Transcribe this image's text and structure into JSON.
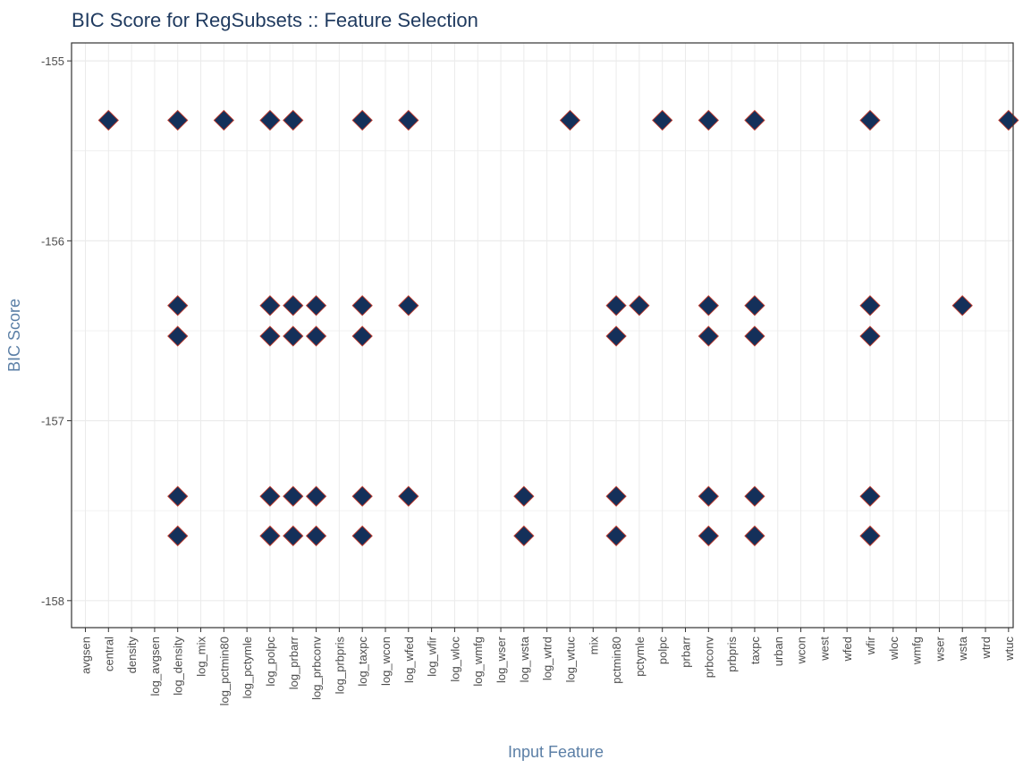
{
  "chart_data": {
    "type": "scatter",
    "title": "BIC Score for RegSubsets :: Feature Selection",
    "xlabel": "Input Feature",
    "ylabel": "BIC Score",
    "ylim": [
      -158.15,
      -154.9
    ],
    "yticks": [
      -155,
      -156,
      -157,
      -158
    ],
    "grid": true,
    "legend": "none",
    "marker": "diamond",
    "colors": {
      "fill": "#14305a",
      "stroke": "#c0392b",
      "title": "#1f3a5f",
      "axis_title": "#5b7fa6",
      "grid": "#ebebeb",
      "frame": "#333333"
    },
    "categories": [
      "avgsen",
      "central",
      "density",
      "log_avgsen",
      "log_density",
      "log_mix",
      "log_pctmin80",
      "log_pctymle",
      "log_polpc",
      "log_prbarr",
      "log_prbconv",
      "log_prbpris",
      "log_taxpc",
      "log_wcon",
      "log_wfed",
      "log_wfir",
      "log_wloc",
      "log_wmfg",
      "log_wser",
      "log_wsta",
      "log_wtrd",
      "log_wtuc",
      "mix",
      "pctmin80",
      "pctymle",
      "polpc",
      "prbarr",
      "prbconv",
      "prbpris",
      "taxpc",
      "urban",
      "wcon",
      "west",
      "wfed",
      "wfir",
      "wloc",
      "wmfg",
      "wser",
      "wsta",
      "wtrd",
      "wtuc"
    ],
    "series": [
      {
        "values": [
          {
            "x": "central",
            "y": -155.33
          },
          {
            "x": "log_density",
            "y": -155.33
          },
          {
            "x": "log_pctmin80",
            "y": -155.33
          },
          {
            "x": "log_polpc",
            "y": -155.33
          },
          {
            "x": "log_prbarr",
            "y": -155.33
          },
          {
            "x": "log_taxpc",
            "y": -155.33
          },
          {
            "x": "log_wfed",
            "y": -155.33
          },
          {
            "x": "log_wtuc",
            "y": -155.33
          },
          {
            "x": "polpc",
            "y": -155.33
          },
          {
            "x": "prbconv",
            "y": -155.33
          },
          {
            "x": "taxpc",
            "y": -155.33
          },
          {
            "x": "wfir",
            "y": -155.33
          },
          {
            "x": "wtuc",
            "y": -155.33
          },
          {
            "x": "log_density",
            "y": -156.36
          },
          {
            "x": "log_polpc",
            "y": -156.36
          },
          {
            "x": "log_prbarr",
            "y": -156.36
          },
          {
            "x": "log_prbconv",
            "y": -156.36
          },
          {
            "x": "log_taxpc",
            "y": -156.36
          },
          {
            "x": "log_wfed",
            "y": -156.36
          },
          {
            "x": "pctmin80",
            "y": -156.36
          },
          {
            "x": "pctymle",
            "y": -156.36
          },
          {
            "x": "prbconv",
            "y": -156.36
          },
          {
            "x": "taxpc",
            "y": -156.36
          },
          {
            "x": "wfir",
            "y": -156.36
          },
          {
            "x": "wsta",
            "y": -156.36
          },
          {
            "x": "log_density",
            "y": -156.53
          },
          {
            "x": "log_polpc",
            "y": -156.53
          },
          {
            "x": "log_prbarr",
            "y": -156.53
          },
          {
            "x": "log_prbconv",
            "y": -156.53
          },
          {
            "x": "log_taxpc",
            "y": -156.53
          },
          {
            "x": "pctmin80",
            "y": -156.53
          },
          {
            "x": "prbconv",
            "y": -156.53
          },
          {
            "x": "taxpc",
            "y": -156.53
          },
          {
            "x": "wfir",
            "y": -156.53
          },
          {
            "x": "log_density",
            "y": -157.42
          },
          {
            "x": "log_polpc",
            "y": -157.42
          },
          {
            "x": "log_prbarr",
            "y": -157.42
          },
          {
            "x": "log_prbconv",
            "y": -157.42
          },
          {
            "x": "log_taxpc",
            "y": -157.42
          },
          {
            "x": "log_wfed",
            "y": -157.42
          },
          {
            "x": "log_wsta",
            "y": -157.42
          },
          {
            "x": "pctmin80",
            "y": -157.42
          },
          {
            "x": "prbconv",
            "y": -157.42
          },
          {
            "x": "taxpc",
            "y": -157.42
          },
          {
            "x": "wfir",
            "y": -157.42
          },
          {
            "x": "log_density",
            "y": -157.64
          },
          {
            "x": "log_polpc",
            "y": -157.64
          },
          {
            "x": "log_prbarr",
            "y": -157.64
          },
          {
            "x": "log_prbconv",
            "y": -157.64
          },
          {
            "x": "log_taxpc",
            "y": -157.64
          },
          {
            "x": "log_wsta",
            "y": -157.64
          },
          {
            "x": "pctmin80",
            "y": -157.64
          },
          {
            "x": "prbconv",
            "y": -157.64
          },
          {
            "x": "taxpc",
            "y": -157.64
          },
          {
            "x": "wfir",
            "y": -157.64
          }
        ]
      }
    ]
  }
}
